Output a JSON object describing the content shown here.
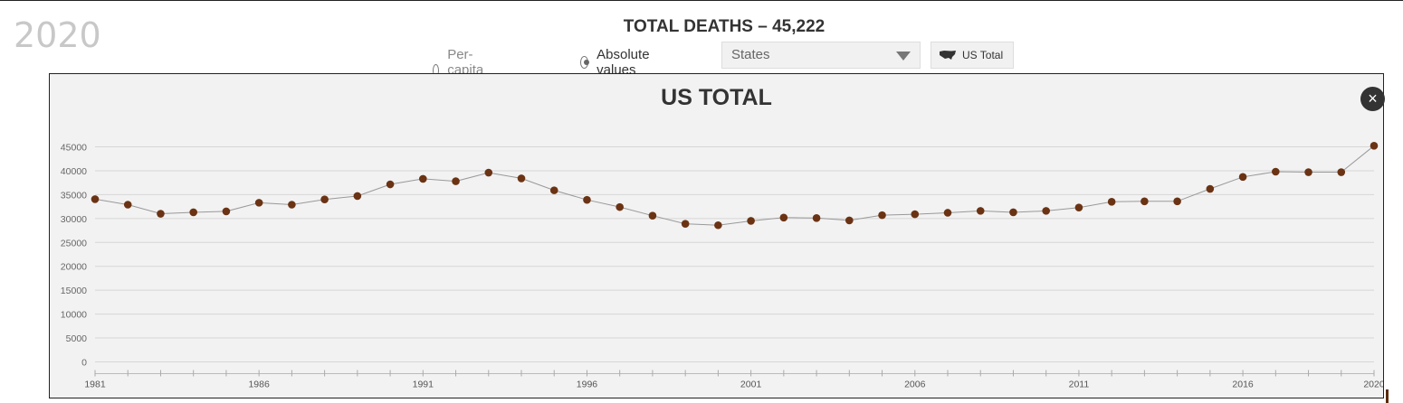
{
  "year": "2020",
  "total_label": "TOTAL DEATHS – 45,222",
  "controls": {
    "per_capita": "Per-capita values",
    "absolute": "Absolute values",
    "states_select": "States",
    "us_total_button": "US Total"
  },
  "panel": {
    "title": "US TOTAL",
    "close": "×"
  },
  "colors": {
    "point": "#6b3313",
    "line": "#999999",
    "grid": "#d6d6d6"
  },
  "chart_data": {
    "type": "line",
    "title": "US TOTAL",
    "xlabel": "",
    "ylabel": "",
    "xlim": [
      1981,
      2020
    ],
    "ylim": [
      0,
      45000
    ],
    "yticks": [
      "0",
      "5000",
      "10000",
      "15000",
      "20000",
      "25000",
      "30000",
      "35000",
      "40000",
      "45000"
    ],
    "xtick_labels": [
      "1981",
      "1986",
      "1991",
      "1996",
      "2001",
      "2006",
      "2011",
      "2016",
      "2020"
    ],
    "x": [
      1981,
      1982,
      1983,
      1984,
      1985,
      1986,
      1987,
      1988,
      1989,
      1990,
      1991,
      1992,
      1993,
      1994,
      1995,
      1996,
      1997,
      1998,
      1999,
      2000,
      2001,
      2002,
      2003,
      2004,
      2005,
      2006,
      2007,
      2008,
      2009,
      2010,
      2011,
      2012,
      2013,
      2014,
      2015,
      2016,
      2017,
      2018,
      2019,
      2020
    ],
    "series": [
      {
        "name": "US Total",
        "values": [
          34050,
          32900,
          31000,
          31300,
          31500,
          33300,
          32900,
          34000,
          34700,
          37150,
          38300,
          37800,
          39600,
          38400,
          35900,
          33900,
          32400,
          30600,
          28900,
          28600,
          29500,
          30200,
          30100,
          29600,
          30700,
          30900,
          31200,
          31600,
          31300,
          31600,
          32300,
          33500,
          33600,
          33600,
          36200,
          38700,
          39800,
          39700,
          39700,
          45222
        ]
      }
    ]
  }
}
